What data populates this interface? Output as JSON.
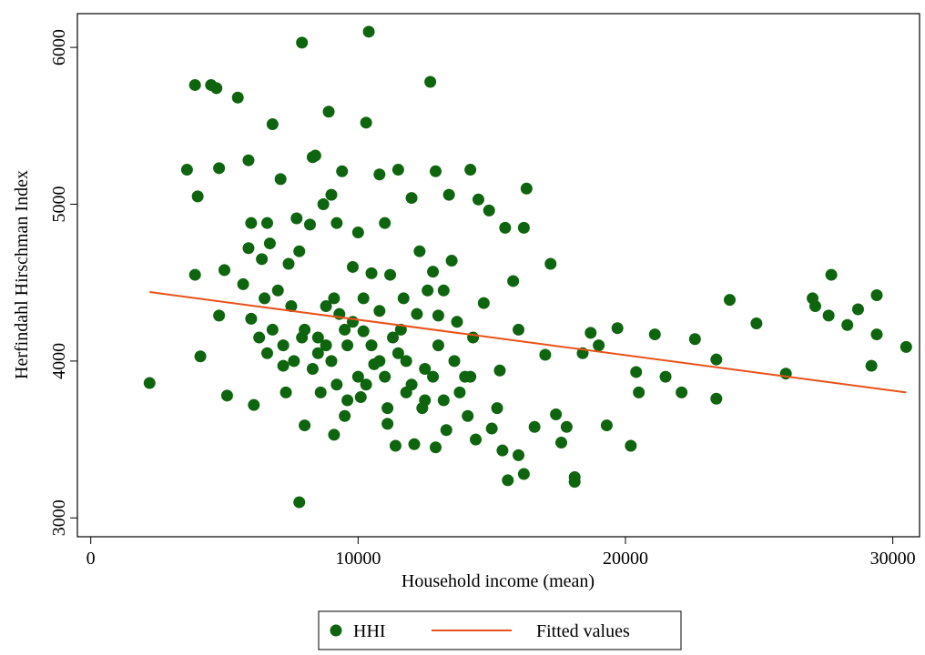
{
  "chart_data": {
    "type": "scatter",
    "xlabel": "Household income (mean)",
    "ylabel": "Herfindahl Hirschman Index",
    "xlim": [
      -500,
      31000
    ],
    "ylim": [
      2880,
      6215
    ],
    "xticks": [
      0,
      10000,
      20000,
      30000
    ],
    "yticks": [
      3000,
      4000,
      5000,
      6000
    ],
    "grid": false,
    "legend": "bottom",
    "series": [
      {
        "name": "HHI",
        "color": "#0f650f",
        "style": "marker",
        "x": [
          2200,
          3600,
          3900,
          3900,
          4000,
          4100,
          4500,
          4700,
          4800,
          4800,
          5000,
          5100,
          5500,
          5700,
          5900,
          5900,
          6000,
          6000,
          6100,
          6300,
          6400,
          6500,
          6600,
          6700,
          6800,
          6800,
          7000,
          7100,
          7200,
          7300,
          7400,
          7500,
          7600,
          7700,
          7800,
          7800,
          7900,
          8000,
          8000,
          8200,
          8300,
          8400,
          8500,
          8600,
          8700,
          8800,
          8900,
          9000,
          9100,
          9200,
          9300,
          9400,
          9500,
          9600,
          9800,
          10000,
          10100,
          10200,
          10300,
          10400,
          10500,
          10600,
          10800,
          10800,
          11000,
          11100,
          11200,
          11400,
          11500,
          11600,
          11800,
          12000,
          12100,
          12300,
          12500,
          12700,
          12800,
          12900,
          12900,
          13000,
          13300,
          13400,
          13500,
          13700,
          13800,
          14100,
          14200,
          14400,
          14500,
          14700,
          14900,
          15000,
          15200,
          15300,
          15400,
          15500,
          15600,
          15800,
          16000,
          16000,
          16200,
          16300,
          16200,
          16600,
          17000,
          17200,
          17400,
          17600,
          17800,
          18100,
          18100,
          18400,
          18700,
          19000,
          19300,
          19700,
          20200,
          20400,
          20500,
          21100,
          21500,
          22100,
          22600,
          23400,
          23400,
          23900,
          24900,
          26000,
          27000,
          27100,
          27600,
          27700,
          28300,
          28700,
          29200,
          29400,
          29400,
          30500,
          8500,
          9000,
          9500,
          10000,
          10500,
          11000,
          11500,
          12000,
          12500,
          13000,
          9200,
          9800,
          10800,
          11300,
          11800,
          12200,
          8800,
          10300,
          12800,
          13600,
          7900,
          8300,
          9600,
          11100,
          12400,
          13200,
          14000,
          14300,
          7200,
          6600,
          9100,
          10200,
          11700,
          12600,
          13200,
          14200
        ],
        "y": [
          3860,
          5220,
          4550,
          5760,
          5050,
          4030,
          5760,
          5740,
          5230,
          4290,
          4580,
          3780,
          5680,
          4490,
          5280,
          4720,
          4880,
          4270,
          3720,
          4150,
          4650,
          4400,
          4880,
          4750,
          4200,
          5510,
          4450,
          5160,
          3970,
          3800,
          4620,
          4350,
          4000,
          4910,
          3100,
          4700,
          6030,
          4200,
          3590,
          4870,
          5300,
          5310,
          4050,
          3800,
          5000,
          4350,
          5590,
          5060,
          3530,
          4880,
          4300,
          5210,
          3650,
          4100,
          4600,
          4820,
          3770,
          4190,
          5520,
          6100,
          4560,
          3980,
          5190,
          4320,
          4880,
          3700,
          4550,
          3460,
          5220,
          4200,
          4000,
          5040,
          3470,
          4700,
          3750,
          5780,
          4570,
          3450,
          5210,
          4290,
          3560,
          5060,
          4640,
          4250,
          3800,
          3650,
          5220,
          3500,
          5030,
          4370,
          4960,
          3570,
          3700,
          3940,
          3430,
          4850,
          3240,
          4510,
          3400,
          4200,
          4850,
          5100,
          3280,
          3580,
          4040,
          4620,
          3660,
          3480,
          3580,
          3260,
          3230,
          4050,
          4180,
          4100,
          3590,
          4210,
          3460,
          3930,
          3800,
          4170,
          3900,
          3800,
          4140,
          3760,
          4010,
          4390,
          4240,
          3920,
          4400,
          4350,
          4290,
          4550,
          4230,
          4330,
          3970,
          4420,
          4170,
          4090,
          4150,
          4000,
          4200,
          3900,
          4100,
          3900,
          4050,
          3850,
          3950,
          4100,
          3850,
          4250,
          4000,
          4150,
          3800,
          4300,
          4100,
          3850,
          3900,
          4000,
          4150,
          3950,
          3750,
          3600,
          3700,
          3750,
          3900,
          4150,
          4100,
          4050,
          4400,
          4400,
          4400,
          4450,
          4450,
          3900
        ]
      },
      {
        "name": "Fitted values",
        "color": "#e8521a",
        "style": "line",
        "x": [
          2200,
          30500
        ],
        "y": [
          4440,
          3800
        ]
      }
    ]
  }
}
